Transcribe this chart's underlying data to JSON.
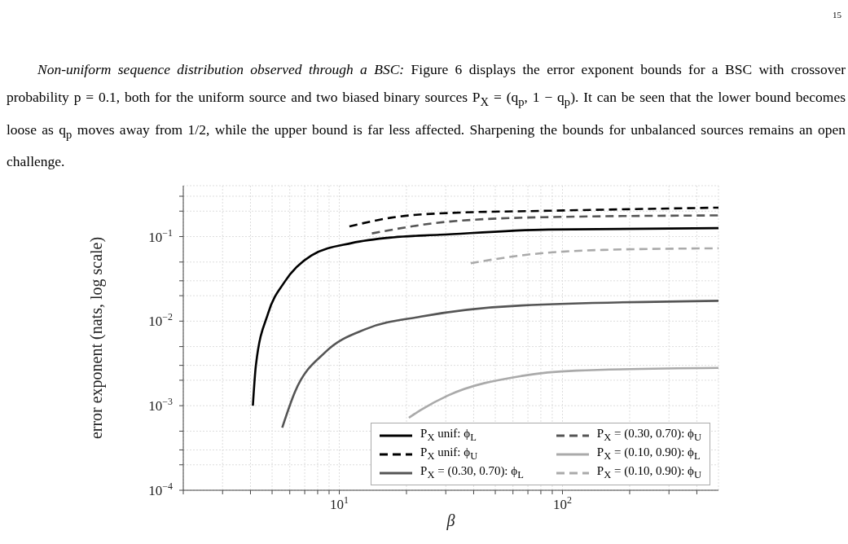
{
  "chart_data": {
    "type": "line",
    "xlabel": "β",
    "ylabel": "error exponent (nats, log scale)",
    "annotations": [
      "15",
      "Non-uniform sequence distribution observed through a BSC:",
      "Figure 6 displays the error exponent bounds for a BSC with crossover probability p = 0.1, both for the uniform source and two biased binary sources P$_{X}$ = (q$_{p}$, 1 − q$_{p}$). It can be seen that the lower bound becomes loose as q$_{p}$ moves away from 1/2, while the upper bound is far less affected. Sharpening the bounds for unbalanced sources remains an open challenge."
    ],
    "log": "xy",
    "grid": true,
    "legend": "bottom right",
    "marker": "none",
    "xlim": [
      2,
      500
    ],
    "ylim": [
      0.0001,
      0.4
    ],
    "xticks": [
      {
        "value": 2,
        "label": null
      },
      {
        "value": 3,
        "label": null
      },
      {
        "value": 4,
        "label": null
      },
      {
        "value": 5,
        "label": null
      },
      {
        "value": 6,
        "label": null
      },
      {
        "value": 7,
        "label": null
      },
      {
        "value": 8,
        "label": null
      },
      {
        "value": 9,
        "label": null
      },
      {
        "value": 10,
        "label": "10$^{1}$"
      },
      {
        "value": 20,
        "label": null
      },
      {
        "value": 30,
        "label": null
      },
      {
        "value": 40,
        "label": null
      },
      {
        "value": 50,
        "label": null
      },
      {
        "value": 60,
        "label": null
      },
      {
        "value": 70,
        "label": null
      },
      {
        "value": 80,
        "label": null
      },
      {
        "value": 90,
        "label": null
      },
      {
        "value": 100,
        "label": "10$^{2}$"
      },
      {
        "value": 200,
        "label": null
      },
      {
        "value": 300,
        "label": null
      },
      {
        "value": 400,
        "label": null
      }
    ],
    "yticks": [
      {
        "value": 0.0001,
        "label": "10$^{−4}$"
      },
      {
        "value": 0.0002,
        "label": null
      },
      {
        "value": 0.0003,
        "label": null
      },
      {
        "value": 0.0005,
        "label": null
      },
      {
        "value": 0.001,
        "label": "10$^{−3}$"
      },
      {
        "value": 0.002,
        "label": null
      },
      {
        "value": 0.003,
        "label": null
      },
      {
        "value": 0.005,
        "label": null
      },
      {
        "value": 0.01,
        "label": "10$^{−2}$"
      },
      {
        "value": 0.02,
        "label": null
      },
      {
        "value": 0.03,
        "label": null
      },
      {
        "value": 0.05,
        "label": null
      },
      {
        "value": 0.1,
        "label": "10$^{−1}$"
      },
      {
        "value": 0.2,
        "label": null
      },
      {
        "value": 0.3,
        "label": null
      }
    ],
    "series": [
      {
        "name": "P$_{X}$ unif: ϕ$_{L}$",
        "color": "#000000",
        "line_style": "solid",
        "x": [
          4.1,
          4.23,
          4.8,
          5.68,
          7.51,
          11.4,
          17.4,
          28.2,
          86.6,
          500
        ],
        "values": [
          0.001,
          0.003,
          0.0124,
          0.029,
          0.06,
          0.084,
          0.098,
          0.105,
          0.121,
          0.126
        ]
      },
      {
        "name": "P$_{X}$ unif: ϕ$_{U}$",
        "color": "#000000",
        "line_style": "dashed",
        "x": [
          11.1,
          17,
          30.7,
          86.6,
          500
        ],
        "values": [
          0.132,
          0.167,
          0.19,
          0.202,
          0.22
        ]
      },
      {
        "name": "P$_{X}$ = (0.30, 0.70): ϕ$_{L}$",
        "color": "#555555",
        "line_style": "solid",
        "x": [
          5.55,
          6.34,
          8.66,
          13.2,
          23.2,
          65.6,
          500
        ],
        "values": [
          0.00055,
          0.00147,
          0.0043,
          0.0081,
          0.0113,
          0.0153,
          0.0174
        ]
      },
      {
        "name": "P$_{X}$ = (0.30, 0.70): ϕ$_{U}$",
        "color": "#555555",
        "line_style": "dashed",
        "x": [
          14,
          30.7,
          86.6,
          500
        ],
        "values": [
          0.109,
          0.15,
          0.17,
          0.178
        ]
      },
      {
        "name": "P$_{X}$ = (0.10, 0.90): ϕ$_{L}$",
        "color": "#aaaaaa",
        "line_style": "solid",
        "x": [
          20.5,
          23.2,
          30.7,
          65.6,
          115,
          500
        ],
        "values": [
          0.00072,
          0.00089,
          0.00132,
          0.00225,
          0.0026,
          0.0028
        ]
      },
      {
        "name": "P$_{X}$ = (0.10, 0.90): ϕ$_{U}$",
        "color": "#aaaaaa",
        "line_style": "dashed",
        "x": [
          38.8,
          65.6,
          152,
          500
        ],
        "values": [
          0.0484,
          0.06,
          0.0696,
          0.0727
        ]
      }
    ]
  }
}
